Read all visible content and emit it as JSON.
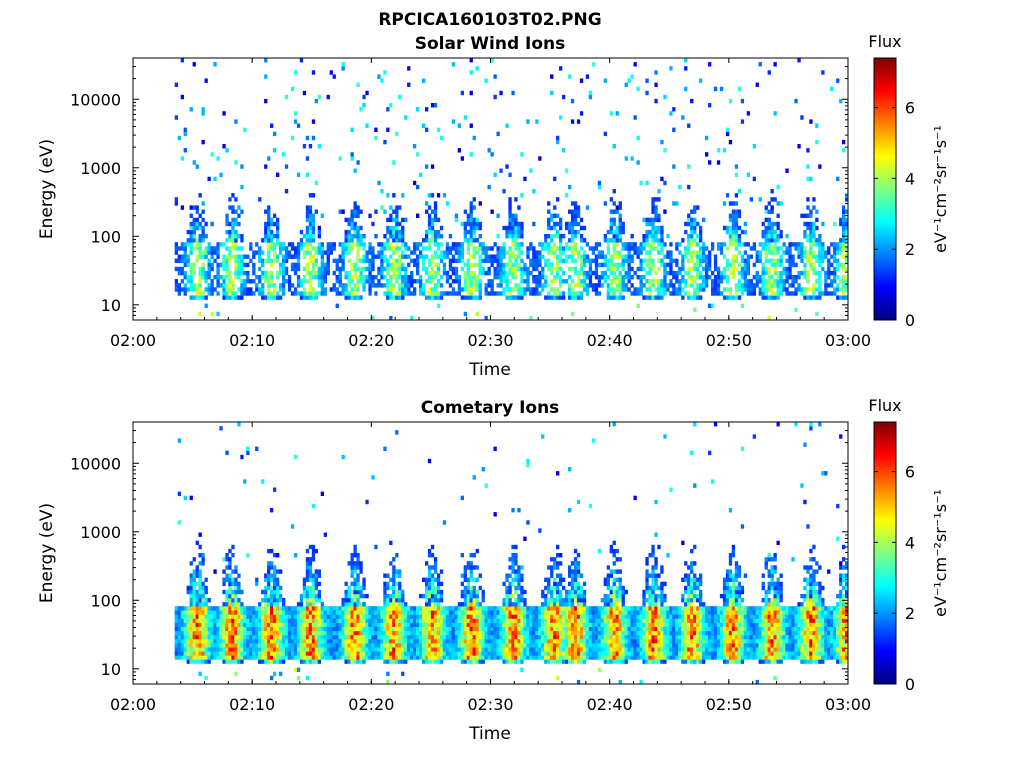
{
  "figure": {
    "title": "RPCICA160103T02.PNG"
  },
  "chart_data": [
    {
      "type": "heatmap",
      "title": "Solar Wind Ions",
      "xlabel": "Time",
      "ylabel": "Energy (eV)",
      "x_ticks": [
        "02:00",
        "02:10",
        "02:20",
        "02:30",
        "02:40",
        "02:50",
        "03:00"
      ],
      "x_range": [
        "02:00",
        "03:00"
      ],
      "y_scale": "log",
      "y_ticks": [
        10,
        100,
        1000,
        10000
      ],
      "y_tick_labels": [
        "10",
        "100",
        "1000",
        "10000"
      ],
      "y_range": [
        6,
        40000
      ],
      "colorbar": {
        "title": "Flux",
        "label": "eV⁻¹cm⁻²sr⁻¹s⁻¹",
        "ticks": [
          0,
          2,
          4,
          6
        ],
        "range": [
          0,
          7.4
        ],
        "colormap": "jet"
      },
      "data_start_minute": 3.5,
      "burst_minutes": [
        5.3,
        8.2,
        11.5,
        14.8,
        18.5,
        21.8,
        25.0,
        28.3,
        31.8,
        35.2,
        37.0,
        40.3,
        43.6,
        46.8,
        50.2,
        53.5,
        56.8,
        59.8
      ],
      "core_energy_range_eV": [
        20,
        60
      ],
      "peak_flux_estimate": 4.8
    },
    {
      "type": "heatmap",
      "title": "Cometary Ions",
      "xlabel": "Time",
      "ylabel": "Energy (eV)",
      "x_ticks": [
        "02:00",
        "02:10",
        "02:20",
        "02:30",
        "02:40",
        "02:50",
        "03:00"
      ],
      "x_range": [
        "02:00",
        "03:00"
      ],
      "y_scale": "log",
      "y_ticks": [
        10,
        100,
        1000,
        10000
      ],
      "y_tick_labels": [
        "10",
        "100",
        "1000",
        "10000"
      ],
      "y_range": [
        6,
        40000
      ],
      "colorbar": {
        "title": "Flux",
        "label": "eV⁻¹cm⁻²sr⁻¹s⁻¹",
        "ticks": [
          0,
          2,
          4,
          6
        ],
        "range": [
          0,
          7.4
        ],
        "colormap": "jet"
      },
      "data_start_minute": 3.5,
      "burst_minutes": [
        5.3,
        8.2,
        11.5,
        14.8,
        18.5,
        21.8,
        25.0,
        28.3,
        31.8,
        35.2,
        37.0,
        40.3,
        43.6,
        46.8,
        50.2,
        53.5,
        56.8,
        59.8
      ],
      "core_energy_range_eV": [
        20,
        60
      ],
      "peak_flux_estimate": 6.8
    }
  ]
}
